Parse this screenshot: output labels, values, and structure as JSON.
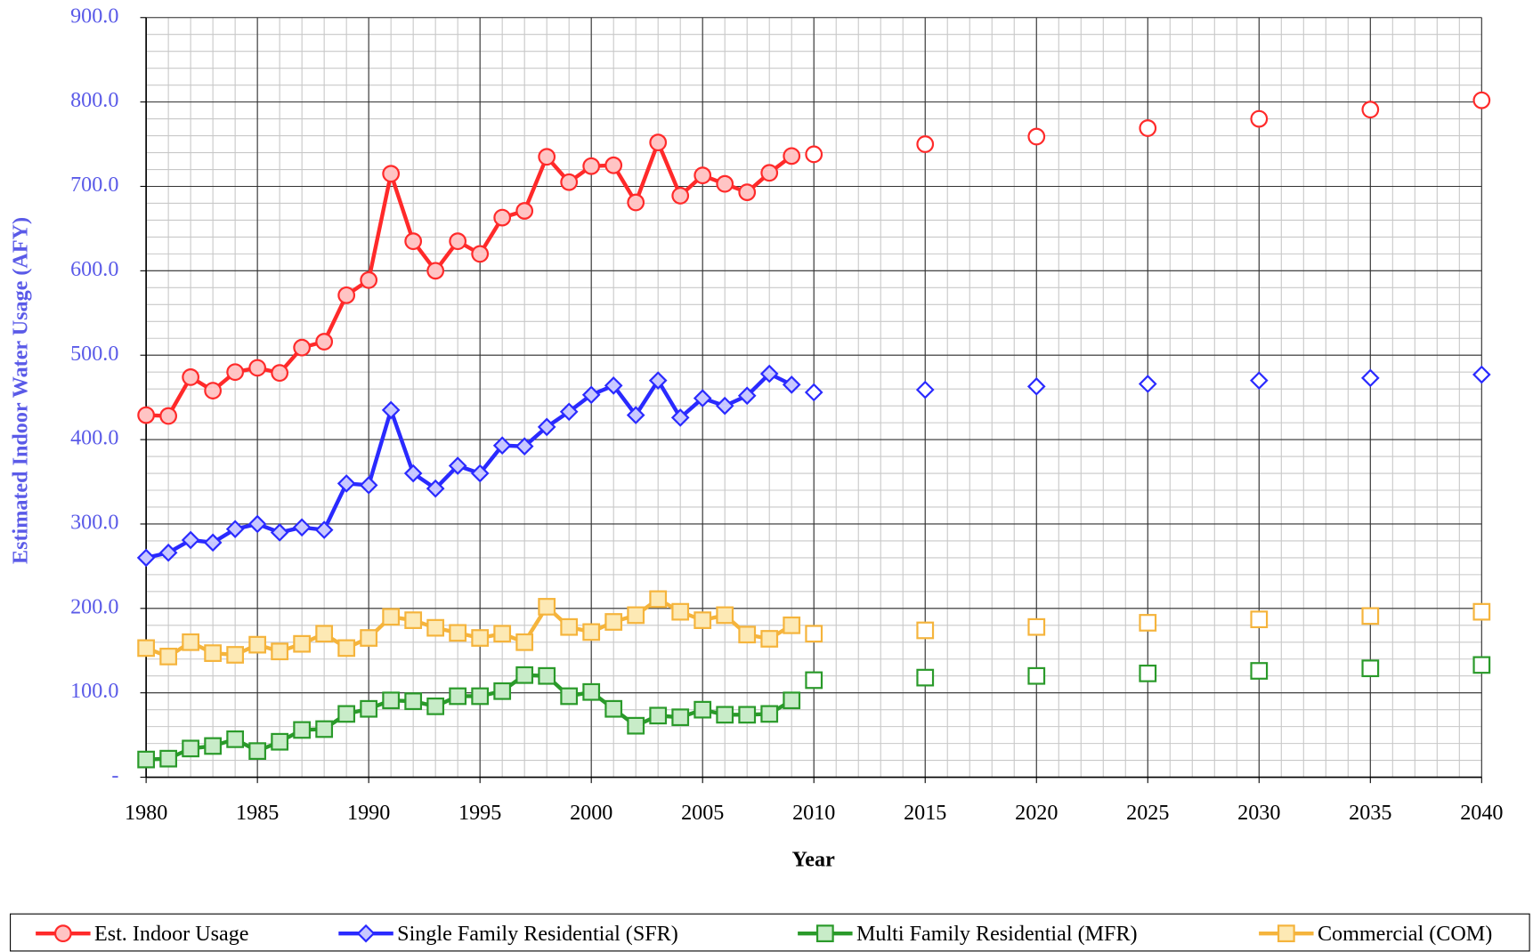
{
  "chart_data": {
    "type": "line",
    "ylabel": "Estimated Indoor Water Usage (AFY)",
    "xlabel": "Year",
    "x": [
      1980,
      1981,
      1982,
      1983,
      1984,
      1985,
      1986,
      1987,
      1988,
      1989,
      1990,
      1991,
      1992,
      1993,
      1994,
      1995,
      1996,
      1997,
      1998,
      1999,
      2000,
      2001,
      2002,
      2003,
      2004,
      2005,
      2006,
      2007,
      2008,
      2009
    ],
    "x_projection": [
      2010,
      2015,
      2020,
      2025,
      2030,
      2035,
      2040
    ],
    "series": [
      {
        "name": "Est. Indoor Usage",
        "color": "#ff2a2a",
        "marker_fill": "#ffc4c4",
        "marker": "circle",
        "values": [
          429,
          428,
          474,
          458,
          480,
          485,
          479,
          509,
          516,
          571,
          589,
          715,
          635,
          600,
          635,
          620,
          663,
          671,
          735,
          705,
          724,
          725,
          681,
          752,
          689,
          713,
          703,
          693,
          716,
          736
        ],
        "projection_values": [
          738,
          750,
          759,
          769,
          780,
          791,
          802
        ]
      },
      {
        "name": "Single Family Residential (SFR)",
        "color": "#2a2aff",
        "marker_fill": "#c8c8ff",
        "marker": "diamond",
        "values": [
          260,
          266,
          281,
          278,
          294,
          300,
          290,
          296,
          293,
          348,
          346,
          435,
          360,
          342,
          369,
          360,
          393,
          392,
          415,
          433,
          453,
          464,
          429,
          470,
          426,
          449,
          440,
          452,
          478,
          465
        ],
        "projection_values": [
          456,
          459,
          463,
          466,
          470,
          473,
          477
        ]
      },
      {
        "name": "Multi Family Residential (MFR)",
        "color": "#2a9a2a",
        "marker_fill": "#c8ecc8",
        "marker": "square",
        "values": [
          21,
          22,
          34,
          37,
          45,
          31,
          42,
          56,
          57,
          75,
          81,
          91,
          90,
          84,
          96,
          96,
          102,
          121,
          120,
          96,
          101,
          81,
          61,
          73,
          71,
          80,
          74,
          74,
          75,
          91
        ],
        "projection_values": [
          115,
          118,
          120,
          123,
          126,
          129,
          133
        ]
      },
      {
        "name": "Commercial (COM)",
        "color": "#f5b43c",
        "marker_fill": "#fde9b4",
        "marker": "square",
        "values": [
          153,
          143,
          160,
          147,
          145,
          157,
          149,
          158,
          170,
          153,
          165,
          190,
          186,
          177,
          171,
          165,
          170,
          160,
          202,
          178,
          172,
          184,
          192,
          211,
          196,
          186,
          192,
          169,
          164,
          180
        ],
        "projection_values": [
          170,
          174,
          178,
          183,
          187,
          191,
          196
        ]
      }
    ],
    "projection_marker_fill": "#ffffff",
    "xlim": [
      1980,
      2040
    ],
    "xticks": [
      1980,
      1985,
      1990,
      1995,
      2000,
      2005,
      2010,
      2015,
      2020,
      2025,
      2030,
      2035,
      2040
    ],
    "ylim": [
      0,
      900
    ],
    "yticks": [
      {
        "value": 0,
        "label": "-"
      },
      {
        "value": 100,
        "label": "100.0"
      },
      {
        "value": 200,
        "label": "200.0"
      },
      {
        "value": 300,
        "label": "300.0"
      },
      {
        "value": 400,
        "label": "400.0"
      },
      {
        "value": 500,
        "label": "500.0"
      },
      {
        "value": 600,
        "label": "600.0"
      },
      {
        "value": 700,
        "label": "700.0"
      },
      {
        "value": 800,
        "label": "800.0"
      },
      {
        "value": 900,
        "label": "900.0"
      }
    ],
    "grid": true,
    "minor_grid": true,
    "x_minor_step": 1,
    "y_minor_step": 20,
    "legend": "bottom"
  }
}
